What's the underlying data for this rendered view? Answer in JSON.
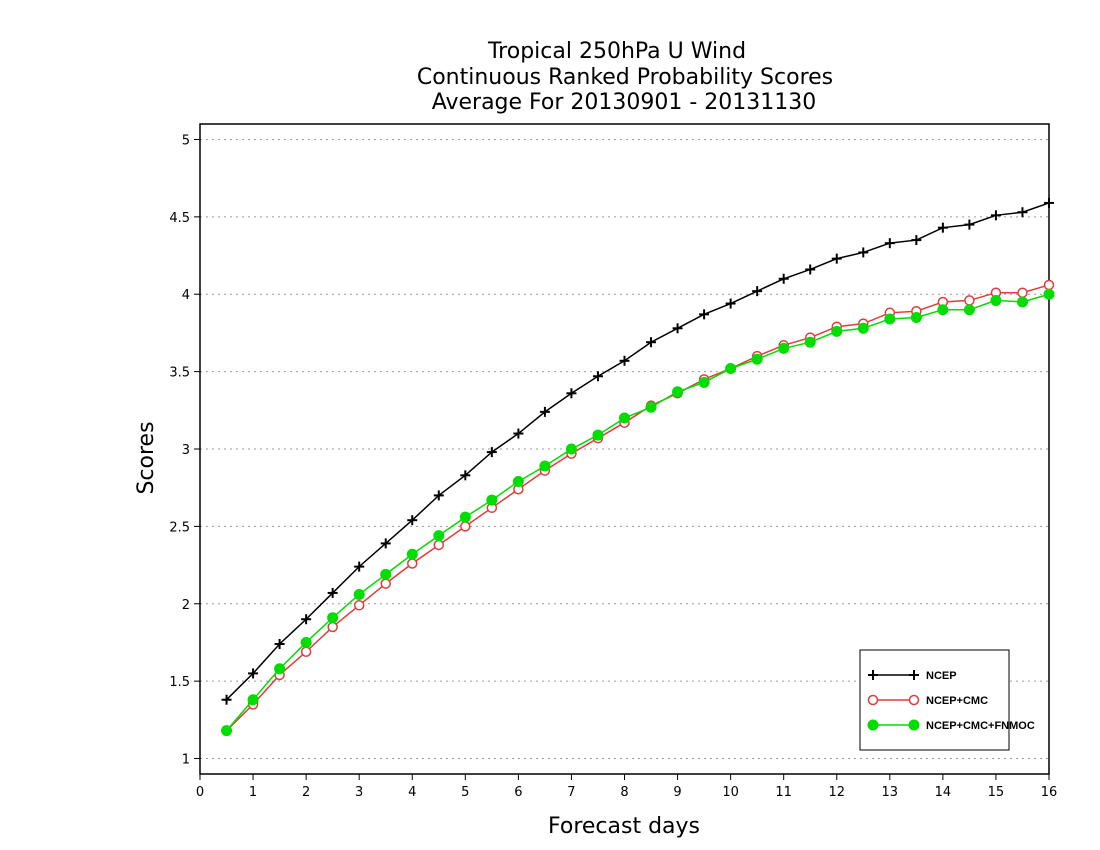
{
  "chart_data": {
    "type": "line",
    "title": [
      "Tropical 250hPa U Wind",
      "Continuous Ranked Probability Scores",
      "Average For 20130901 - 20131130"
    ],
    "xlabel": "Forecast days",
    "ylabel": "Scores",
    "xlim": [
      0,
      16
    ],
    "ylim": [
      0.9,
      5.1
    ],
    "xticks": [
      "0",
      "1",
      "2",
      "3",
      "4",
      "5",
      "6",
      "7",
      "8",
      "9",
      "10",
      "11",
      "12",
      "13",
      "14",
      "15",
      "16"
    ],
    "yticks": [
      "1",
      "1.5",
      "2",
      "2.5",
      "3",
      "3.5",
      "4",
      "4.5",
      "5"
    ],
    "grid": "horizontal dotted",
    "legend_position": "bottom-right",
    "x": [
      0.5,
      1,
      1.5,
      2,
      2.5,
      3,
      3.5,
      4,
      4.5,
      5,
      5.5,
      6,
      6.5,
      7,
      7.5,
      8,
      8.5,
      9,
      9.5,
      10,
      10.5,
      11,
      11.5,
      12,
      12.5,
      13,
      13.5,
      14,
      14.5,
      15,
      15.5,
      16
    ],
    "series": [
      {
        "name": "NCEP",
        "color": "#000000",
        "marker": "plus",
        "values": [
          1.38,
          1.55,
          1.74,
          1.9,
          2.07,
          2.24,
          2.39,
          2.54,
          2.7,
          2.83,
          2.98,
          3.1,
          3.24,
          3.36,
          3.47,
          3.57,
          3.69,
          3.78,
          3.87,
          3.94,
          4.02,
          4.1,
          4.16,
          4.23,
          4.27,
          4.33,
          4.35,
          4.43,
          4.45,
          4.51,
          4.53,
          4.59
        ]
      },
      {
        "name": "NCEP+CMC",
        "color": "#e03c3c",
        "marker": "open-circle",
        "values": [
          1.18,
          1.35,
          1.54,
          1.69,
          1.85,
          1.99,
          2.13,
          2.26,
          2.38,
          2.5,
          2.62,
          2.74,
          2.86,
          2.97,
          3.07,
          3.17,
          3.28,
          3.36,
          3.45,
          3.52,
          3.6,
          3.67,
          3.72,
          3.79,
          3.81,
          3.88,
          3.89,
          3.95,
          3.96,
          4.01,
          4.01,
          4.06
        ]
      },
      {
        "name": "NCEP+CMC+FNMOC",
        "color": "#00dd00",
        "marker": "filled-circle",
        "values": [
          1.18,
          1.38,
          1.58,
          1.75,
          1.91,
          2.06,
          2.19,
          2.32,
          2.44,
          2.56,
          2.67,
          2.79,
          2.89,
          3.0,
          3.09,
          3.2,
          3.27,
          3.37,
          3.43,
          3.52,
          3.58,
          3.65,
          3.69,
          3.76,
          3.78,
          3.84,
          3.85,
          3.9,
          3.9,
          3.96,
          3.95,
          4.0
        ]
      }
    ]
  }
}
